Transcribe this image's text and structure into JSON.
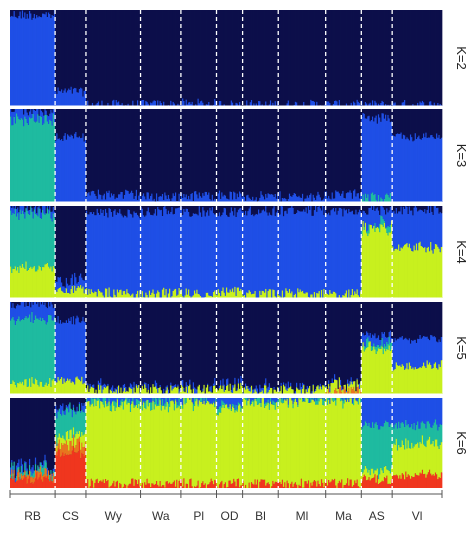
{
  "chart_data": {
    "type": "stacked-bar",
    "x_axis": {
      "populations": [
        {
          "label": "RB",
          "n": 38
        },
        {
          "label": "CS",
          "n": 26
        },
        {
          "label": "Wy",
          "n": 46
        },
        {
          "label": "Wa",
          "n": 34
        },
        {
          "label": "Pl",
          "n": 30
        },
        {
          "label": "OD",
          "n": 22
        },
        {
          "label": "Bl",
          "n": 30
        },
        {
          "label": "Ml",
          "n": 40
        },
        {
          "label": "Ma",
          "n": 30
        },
        {
          "label": "AS",
          "n": 26
        },
        {
          "label": "Vl",
          "n": 42
        }
      ]
    },
    "panels": [
      {
        "k_label": "K=2",
        "clusters": [
          "dark-navy",
          "blue"
        ],
        "mean_membership": {
          "RB": [
            0.05,
            0.95
          ],
          "CS": [
            0.85,
            0.15
          ],
          "Wy": [
            0.99,
            0.01
          ],
          "Wa": [
            0.99,
            0.01
          ],
          "Pl": [
            0.98,
            0.02
          ],
          "OD": [
            0.99,
            0.01
          ],
          "Bl": [
            0.99,
            0.01
          ],
          "Ml": [
            0.99,
            0.01
          ],
          "Ma": [
            0.99,
            0.01
          ],
          "AS": [
            0.99,
            0.01
          ],
          "Vl": [
            0.99,
            0.01
          ]
        }
      },
      {
        "k_label": "K=3",
        "clusters": [
          "dark-navy",
          "blue",
          "teal"
        ],
        "mean_membership": {
          "RB": [
            0.02,
            0.1,
            0.88
          ],
          "CS": [
            0.3,
            0.7,
            0.0
          ],
          "Wy": [
            0.92,
            0.08,
            0.0
          ],
          "Wa": [
            0.94,
            0.06,
            0.0
          ],
          "Pl": [
            0.93,
            0.07,
            0.0
          ],
          "OD": [
            0.93,
            0.07,
            0.0
          ],
          "Bl": [
            0.94,
            0.06,
            0.0
          ],
          "Ml": [
            0.94,
            0.06,
            0.0
          ],
          "Ma": [
            0.92,
            0.08,
            0.0
          ],
          "AS": [
            0.1,
            0.85,
            0.05
          ],
          "Vl": [
            0.3,
            0.7,
            0.0
          ]
        }
      },
      {
        "k_label": "K=4",
        "clusters": [
          "dark-navy",
          "blue",
          "teal",
          "lime"
        ],
        "mean_membership": {
          "RB": [
            0.02,
            0.05,
            0.6,
            0.33
          ],
          "CS": [
            0.8,
            0.1,
            0.0,
            0.1
          ],
          "Wy": [
            0.08,
            0.87,
            0.0,
            0.05
          ],
          "Wa": [
            0.06,
            0.89,
            0.0,
            0.05
          ],
          "Pl": [
            0.06,
            0.89,
            0.0,
            0.05
          ],
          "OD": [
            0.07,
            0.86,
            0.0,
            0.07
          ],
          "Bl": [
            0.06,
            0.89,
            0.0,
            0.05
          ],
          "Ml": [
            0.05,
            0.9,
            0.0,
            0.05
          ],
          "Ma": [
            0.06,
            0.89,
            0.0,
            0.05
          ],
          "AS": [
            0.05,
            0.15,
            0.05,
            0.75
          ],
          "Vl": [
            0.05,
            0.4,
            0.0,
            0.55
          ]
        }
      },
      {
        "k_label": "K=5",
        "clusters": [
          "dark-navy",
          "blue",
          "teal",
          "lime",
          "orange"
        ],
        "mean_membership": {
          "RB": [
            0.02,
            0.15,
            0.7,
            0.13,
            0.0
          ],
          "CS": [
            0.2,
            0.65,
            0.0,
            0.15,
            0.0
          ],
          "Wy": [
            0.92,
            0.03,
            0.0,
            0.05,
            0.0
          ],
          "Wa": [
            0.93,
            0.02,
            0.0,
            0.05,
            0.0
          ],
          "Pl": [
            0.92,
            0.03,
            0.0,
            0.05,
            0.0
          ],
          "OD": [
            0.9,
            0.03,
            0.0,
            0.07,
            0.0
          ],
          "Bl": [
            0.92,
            0.03,
            0.0,
            0.05,
            0.0
          ],
          "Ml": [
            0.93,
            0.02,
            0.0,
            0.05,
            0.0
          ],
          "Ma": [
            0.88,
            0.02,
            0.0,
            0.07,
            0.03
          ],
          "AS": [
            0.35,
            0.1,
            0.05,
            0.5,
            0.0
          ],
          "Vl": [
            0.4,
            0.3,
            0.0,
            0.3,
            0.0
          ]
        }
      },
      {
        "k_label": "K=6",
        "clusters": [
          "dark-navy",
          "blue",
          "teal",
          "lime",
          "orange",
          "red"
        ],
        "mean_membership": {
          "RB": [
            0.75,
            0.05,
            0.05,
            0.0,
            0.05,
            0.1
          ],
          "CS": [
            0.1,
            0.05,
            0.25,
            0.1,
            0.1,
            0.4
          ],
          "Wy": [
            0.0,
            0.03,
            0.05,
            0.87,
            0.0,
            0.05
          ],
          "Wa": [
            0.0,
            0.03,
            0.04,
            0.88,
            0.0,
            0.05
          ],
          "Pl": [
            0.0,
            0.02,
            0.03,
            0.9,
            0.0,
            0.05
          ],
          "OD": [
            0.0,
            0.08,
            0.03,
            0.84,
            0.0,
            0.05
          ],
          "Bl": [
            0.0,
            0.02,
            0.03,
            0.9,
            0.0,
            0.05
          ],
          "Ml": [
            0.0,
            0.02,
            0.03,
            0.9,
            0.0,
            0.05
          ],
          "Ma": [
            0.0,
            0.02,
            0.03,
            0.9,
            0.0,
            0.05
          ],
          "AS": [
            0.0,
            0.3,
            0.5,
            0.1,
            0.0,
            0.1
          ],
          "Vl": [
            0.0,
            0.3,
            0.2,
            0.35,
            0.0,
            0.15
          ]
        }
      }
    ],
    "colors": {
      "dark-navy": "#0c0f4a",
      "blue": "#1f4fe6",
      "teal": "#1fbba0",
      "lime": "#c8f01e",
      "orange": "#e8761f",
      "red": "#f0361e"
    },
    "separator_style": "dashed-white",
    "grid": false,
    "legend": "none"
  }
}
